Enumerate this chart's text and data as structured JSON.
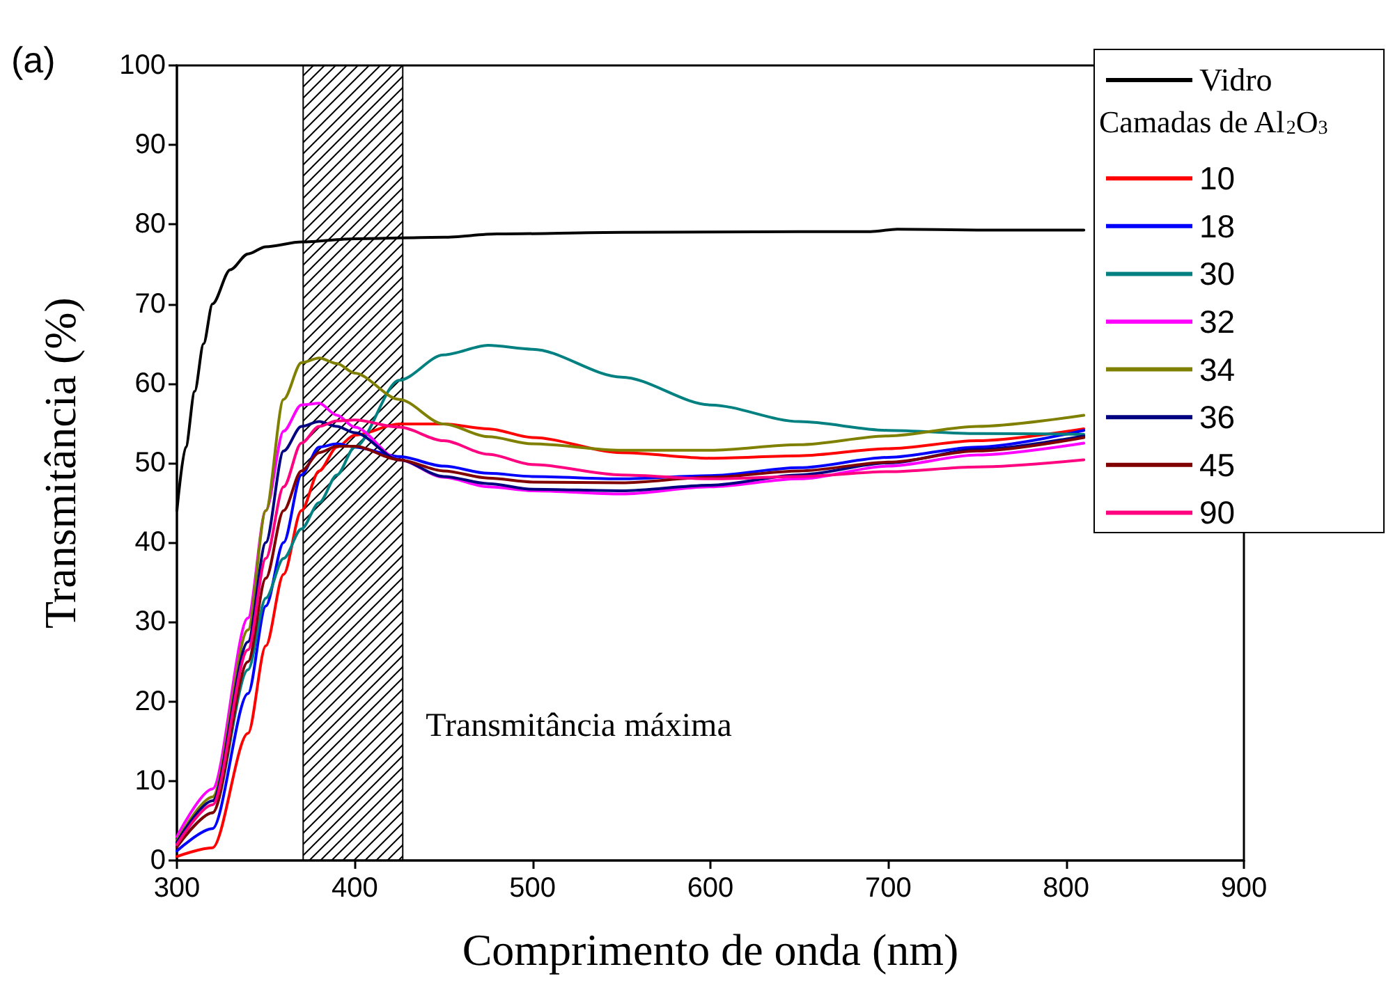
{
  "chart_data": {
    "type": "line",
    "xlabel": "Comprimento de onda (nm)",
    "ylabel": "Transmitância (%)",
    "legend_title": "Camadas de Al$_{2}$O$_{3}$",
    "annotations": [
      "(a)"
    ],
    "xlim": [
      300,
      900
    ],
    "xticks": [
      300,
      400,
      500,
      600,
      700,
      800,
      900
    ],
    "ylim": [
      0,
      100
    ],
    "yticks": [
      0,
      10,
      20,
      30,
      40,
      50,
      60,
      70,
      80,
      90,
      100
    ],
    "grid": false,
    "legend": "top right",
    "marker": "none",
    "line_style": "solid",
    "bands": [
      {
        "axis": "x",
        "from": 371,
        "to": 427,
        "label": "Transmitância máxima",
        "color": "#000000"
      }
    ],
    "series": [
      {
        "name": "Vidro",
        "color": "#000000",
        "x": [
          300,
          305,
          310,
          315,
          320,
          330,
          340,
          350,
          370,
          400,
          450,
          480,
          550,
          650,
          690,
          705,
          750,
          810
        ],
        "values": [
          44,
          52,
          59,
          65,
          70,
          74.3,
          76.3,
          77.2,
          77.8,
          78.2,
          78.4,
          78.8,
          79,
          79.1,
          79.1,
          79.4,
          79.3,
          79.3
        ]
      },
      {
        "name": "10",
        "color": "#ff0000",
        "x": [
          300,
          320,
          340,
          350,
          360,
          370,
          380,
          390,
          400,
          425,
          450,
          475,
          500,
          550,
          600,
          650,
          700,
          750,
          810
        ],
        "values": [
          0.5,
          1.6,
          16,
          27,
          36,
          44,
          49,
          52,
          53.5,
          54.9,
          54.9,
          54.3,
          53.2,
          51.3,
          50.6,
          50.9,
          51.8,
          52.8,
          54.3
        ]
      },
      {
        "name": "18",
        "color": "#0000ff",
        "x": [
          300,
          320,
          340,
          350,
          360,
          370,
          380,
          390,
          400,
          425,
          450,
          475,
          500,
          550,
          600,
          650,
          700,
          750,
          810
        ],
        "values": [
          1.2,
          4,
          21,
          32,
          40,
          48.5,
          52,
          52.4,
          52,
          50.8,
          49.6,
          48.7,
          48.3,
          48,
          48.4,
          49.4,
          50.7,
          52,
          54.1
        ]
      },
      {
        "name": "30",
        "color": "#008080",
        "x": [
          300,
          320,
          340,
          350,
          360,
          370,
          380,
          390,
          400,
          425,
          450,
          475,
          500,
          550,
          600,
          650,
          700,
          750,
          810
        ],
        "values": [
          1.8,
          6,
          24,
          33,
          38,
          41.7,
          45,
          48.5,
          52,
          60.4,
          63.6,
          64.8,
          64.3,
          60.8,
          57.3,
          55.2,
          54.1,
          53.7,
          53.6
        ]
      },
      {
        "name": "32",
        "color": "#ff00ff",
        "x": [
          300,
          320,
          340,
          350,
          360,
          370,
          380,
          390,
          400,
          425,
          450,
          475,
          500,
          550,
          600,
          650,
          700,
          750,
          810
        ],
        "values": [
          3,
          9,
          30.5,
          44,
          54,
          57.3,
          57.5,
          56,
          54.5,
          50.4,
          48.2,
          47,
          46.5,
          46.1,
          47,
          48,
          49.6,
          51,
          52.5
        ]
      },
      {
        "name": "34",
        "color": "#808000",
        "x": [
          300,
          320,
          340,
          350,
          360,
          370,
          380,
          390,
          400,
          425,
          450,
          475,
          500,
          550,
          600,
          650,
          700,
          750,
          810
        ],
        "values": [
          2.5,
          8,
          29,
          44,
          58,
          62.6,
          63.2,
          62.5,
          61.3,
          58,
          54.9,
          53.3,
          52.4,
          51.6,
          51.6,
          52.3,
          53.4,
          54.6,
          56
        ]
      },
      {
        "name": "36",
        "color": "#000080",
        "x": [
          300,
          320,
          340,
          350,
          360,
          370,
          380,
          390,
          400,
          425,
          450,
          475,
          500,
          550,
          600,
          650,
          700,
          750,
          810
        ],
        "values": [
          2.3,
          7.5,
          27.5,
          40,
          51.5,
          54.6,
          55.2,
          54.6,
          53.8,
          50.4,
          48.3,
          47.4,
          46.7,
          46.5,
          47.2,
          48.5,
          50,
          51.7,
          53.4
        ]
      },
      {
        "name": "45",
        "color": "#800000",
        "x": [
          300,
          320,
          340,
          350,
          360,
          370,
          380,
          390,
          400,
          425,
          450,
          475,
          500,
          550,
          600,
          650,
          700,
          750,
          810
        ],
        "values": [
          1.7,
          6,
          25,
          35.5,
          44,
          49,
          51.3,
          52.1,
          52.1,
          50.4,
          49,
          48.1,
          47.6,
          47.5,
          48.2,
          49,
          50.1,
          51.5,
          53.2
        ]
      },
      {
        "name": "90",
        "color": "#ff0080",
        "x": [
          300,
          320,
          340,
          350,
          360,
          370,
          380,
          390,
          400,
          425,
          450,
          475,
          500,
          550,
          600,
          650,
          700,
          750,
          810
        ],
        "values": [
          2,
          7,
          26.5,
          38,
          47,
          52.5,
          54.6,
          55.3,
          55.4,
          54.5,
          52.8,
          51.1,
          49.8,
          48.5,
          48,
          48.3,
          48.9,
          49.5,
          50.4
        ]
      }
    ]
  }
}
